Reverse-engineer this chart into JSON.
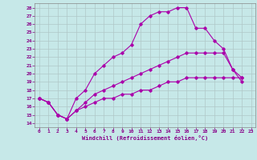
{
  "xlabel": "Windchill (Refroidissement éolien,°C)",
  "bg_color": "#c6e8e8",
  "line_color": "#aa00aa",
  "grid_color": "#b0c8c8",
  "xlim": [
    -0.5,
    23.5
  ],
  "ylim": [
    13.5,
    28.5
  ],
  "xticks": [
    0,
    1,
    2,
    3,
    4,
    5,
    6,
    7,
    8,
    9,
    10,
    11,
    12,
    13,
    14,
    15,
    16,
    17,
    18,
    19,
    20,
    21,
    22,
    23
  ],
  "yticks": [
    14,
    15,
    16,
    17,
    18,
    19,
    20,
    21,
    22,
    23,
    24,
    25,
    26,
    27,
    28
  ],
  "line1_x": [
    0,
    1,
    2,
    3,
    4,
    5,
    6,
    7,
    8,
    9,
    10,
    11,
    12,
    13,
    14,
    15,
    16,
    17,
    18,
    19,
    20,
    21,
    22
  ],
  "line1_y": [
    17.0,
    16.5,
    15.0,
    14.5,
    17.0,
    18.0,
    20.0,
    21.0,
    22.0,
    22.5,
    23.5,
    26.0,
    27.0,
    27.5,
    27.5,
    28.0,
    28.0,
    25.5,
    25.5,
    24.0,
    23.0,
    20.5,
    19.0
  ],
  "line2_x": [
    0,
    1,
    2,
    3,
    4,
    5,
    6,
    7,
    8,
    9,
    10,
    11,
    12,
    13,
    14,
    15,
    16,
    17,
    18,
    19,
    20,
    21,
    22
  ],
  "line2_y": [
    17.0,
    16.5,
    15.0,
    14.5,
    15.5,
    16.5,
    17.5,
    18.0,
    18.5,
    19.0,
    19.5,
    20.0,
    20.5,
    21.0,
    21.5,
    22.0,
    22.5,
    22.5,
    22.5,
    22.5,
    22.5,
    20.5,
    19.5
  ],
  "line3_x": [
    0,
    1,
    2,
    3,
    4,
    5,
    6,
    7,
    8,
    9,
    10,
    11,
    12,
    13,
    14,
    15,
    16,
    17,
    18,
    19,
    20,
    21,
    22
  ],
  "line3_y": [
    17.0,
    16.5,
    15.0,
    14.5,
    15.5,
    16.0,
    16.5,
    17.0,
    17.0,
    17.5,
    17.5,
    18.0,
    18.0,
    18.5,
    19.0,
    19.0,
    19.5,
    19.5,
    19.5,
    19.5,
    19.5,
    19.5,
    19.5
  ]
}
